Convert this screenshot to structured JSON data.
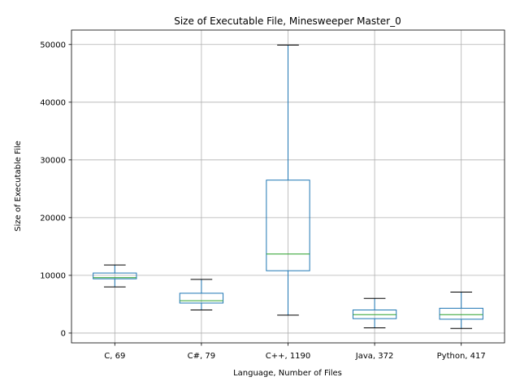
{
  "chart_data": {
    "type": "box",
    "title": "Size of Executable File, Minesweeper Master_0",
    "xlabel": "Language, Number of Files",
    "ylabel": "Size of Executable File",
    "ylim": [
      -1700,
      52500
    ],
    "yticks": [
      0,
      10000,
      20000,
      30000,
      40000,
      50000
    ],
    "grid": true,
    "colors": {
      "box": "#1f77b4",
      "median": "#2ca02c",
      "cap": "#000000",
      "grid": "#b0b0b0"
    },
    "categories": [
      "C, 69",
      "C#, 79",
      "C++, 1190",
      "Java, 372",
      "Python, 417"
    ],
    "boxes": [
      {
        "category": "C, 69",
        "whisker_low": 8000,
        "q1": 9400,
        "median": 9600,
        "q3": 10400,
        "whisker_high": 11800
      },
      {
        "category": "C#, 79",
        "whisker_low": 4000,
        "q1": 5200,
        "median": 5600,
        "q3": 6900,
        "whisker_high": 9300
      },
      {
        "category": "C++, 1190",
        "whisker_low": 3100,
        "q1": 10800,
        "median": 13700,
        "q3": 26500,
        "whisker_high": 49900
      },
      {
        "category": "Java, 372",
        "whisker_low": 900,
        "q1": 2500,
        "median": 3200,
        "q3": 4000,
        "whisker_high": 6000
      },
      {
        "category": "Python, 417",
        "whisker_low": 800,
        "q1": 2400,
        "median": 3200,
        "q3": 4300,
        "whisker_high": 7100
      }
    ]
  }
}
